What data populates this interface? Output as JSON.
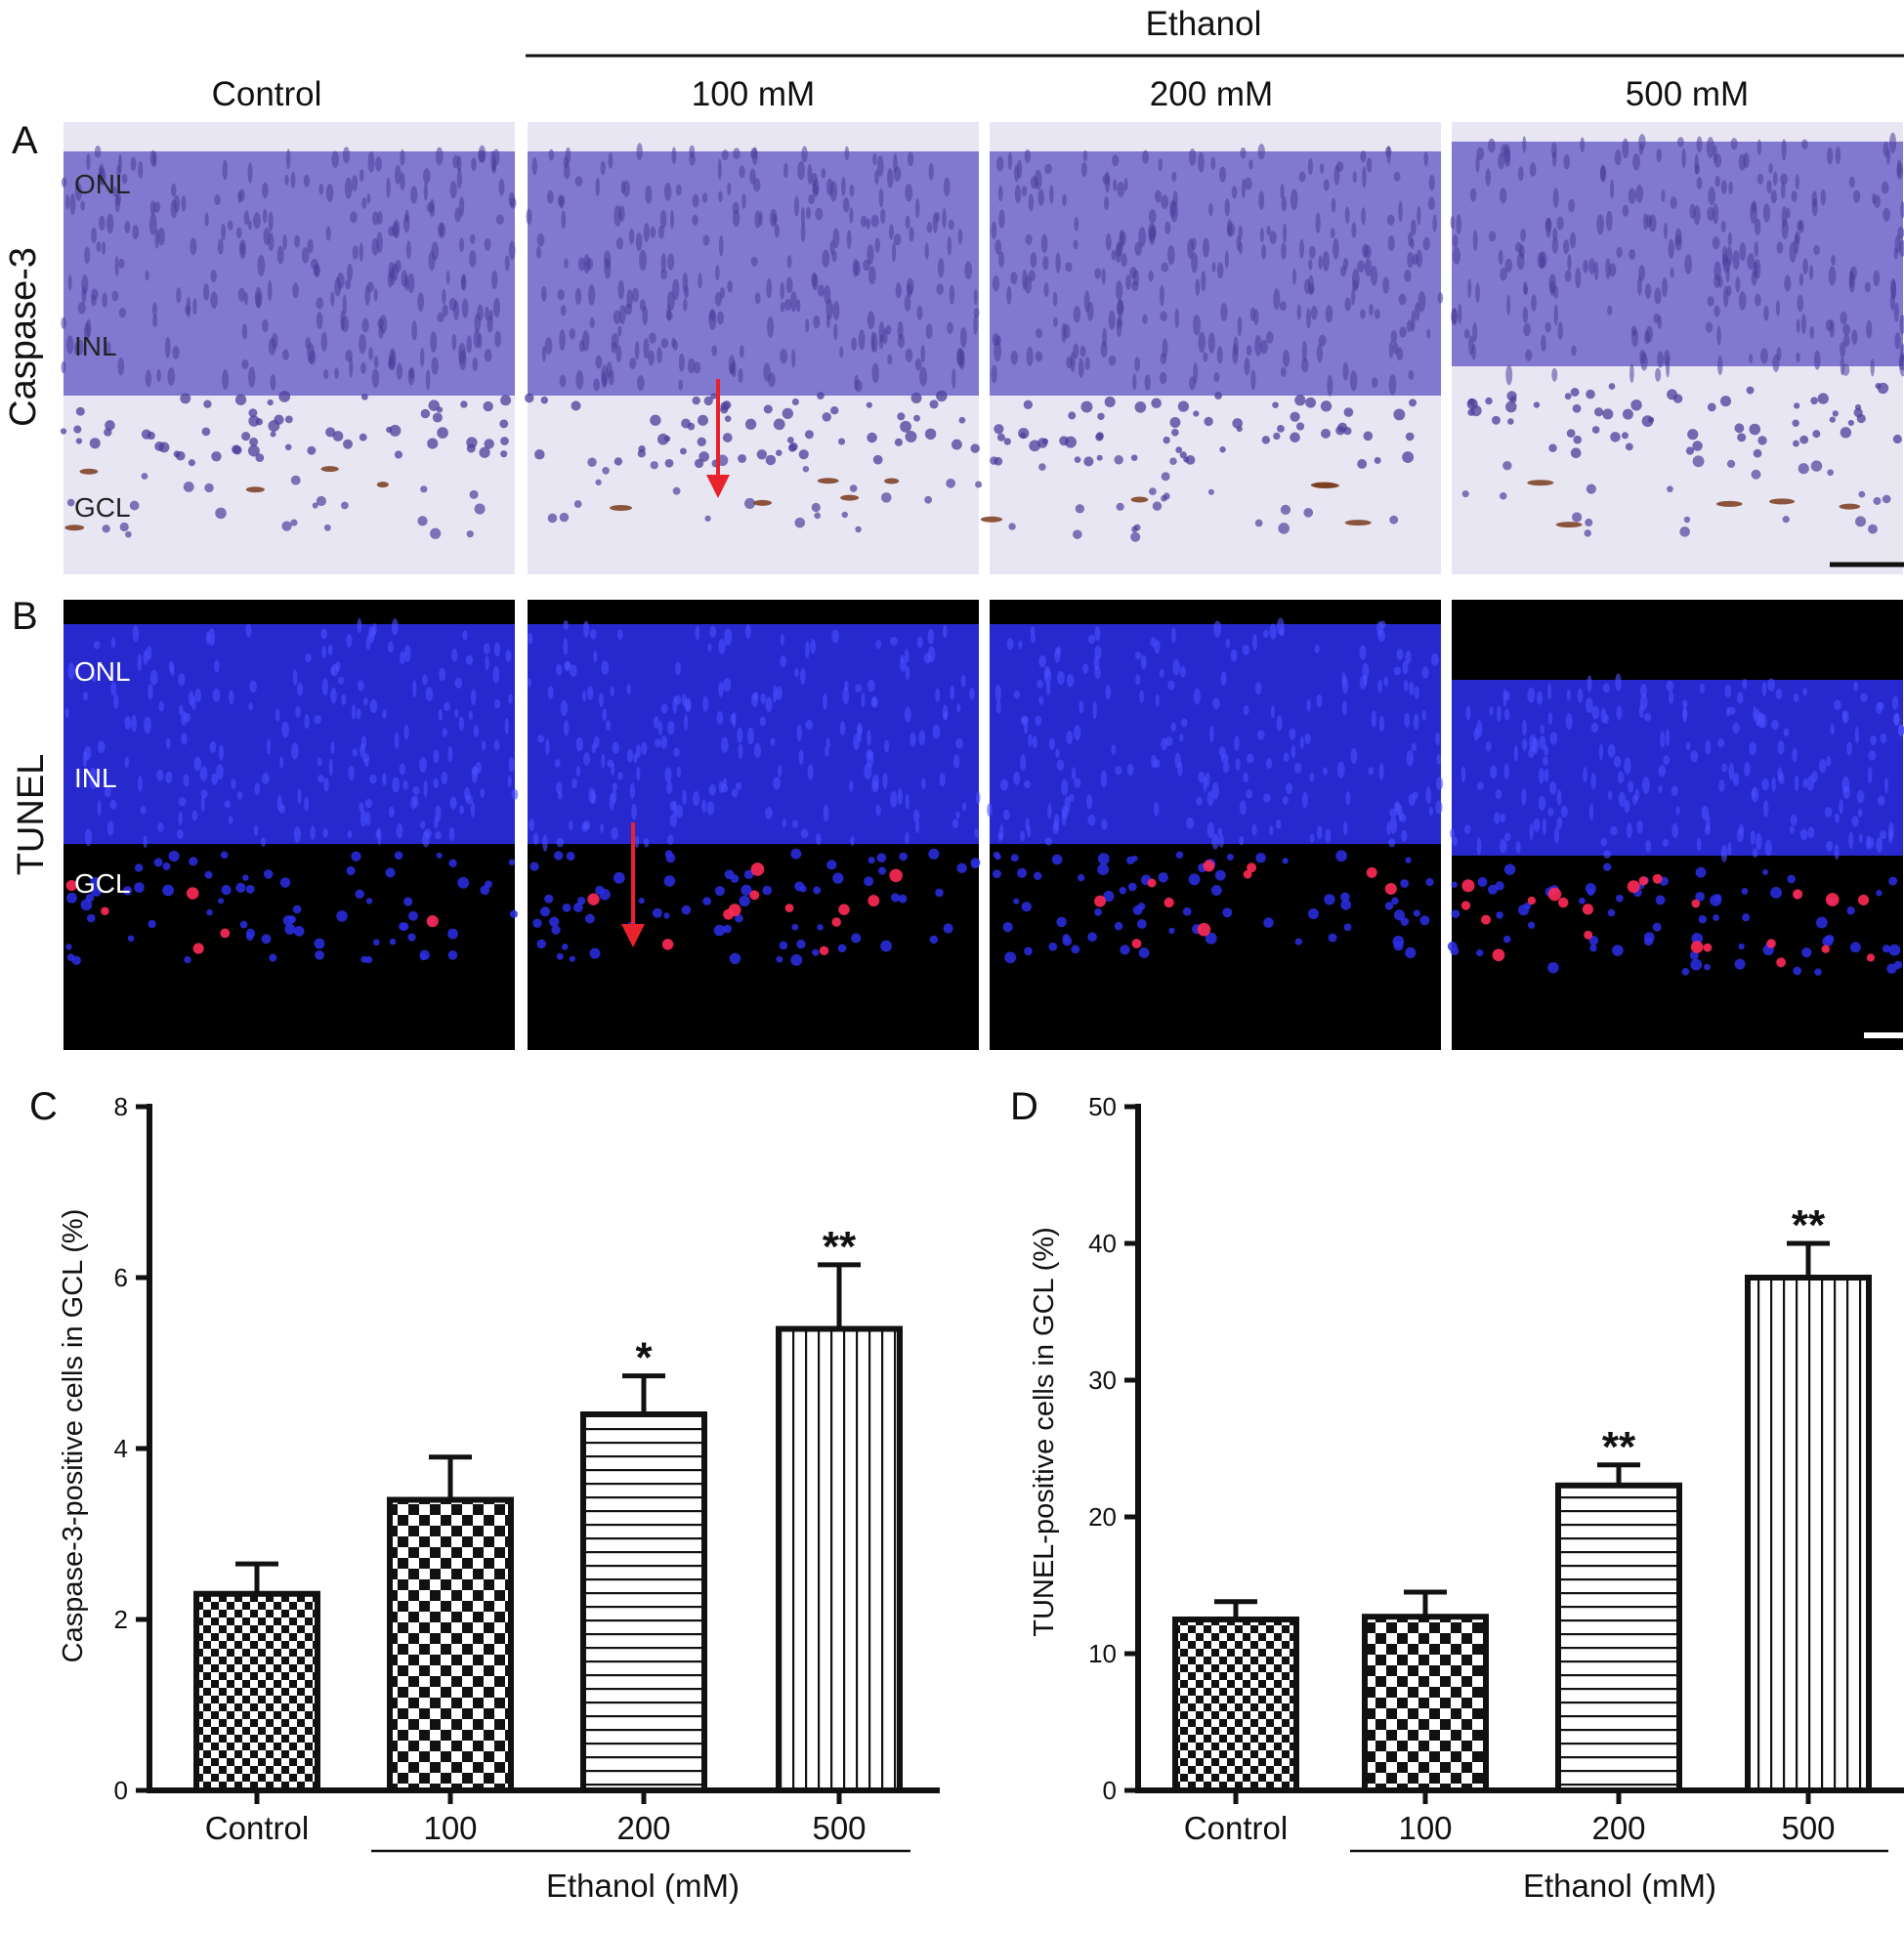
{
  "header": {
    "group_label": "Ethanol",
    "columns": [
      "Control",
      "100 mM",
      "200 mM",
      "500 mM"
    ]
  },
  "rows": [
    {
      "letter": "A",
      "label": "Caspase-3",
      "layers": [
        "ONL",
        "INL",
        "GCL"
      ]
    },
    {
      "letter": "B",
      "label": "TUNEL",
      "layers": [
        "ONL",
        "INL",
        "GCL"
      ]
    }
  ],
  "colors": {
    "he_background": "#e9e6f4",
    "he_stain": "#6f64c8",
    "he_cells": "#4b3e9a",
    "he_brown": "#7a3b1c",
    "fl_background": "#000000",
    "fl_blue": "#2b2ee6",
    "fl_red": "#ff2a55",
    "arrow": "#e8222b",
    "bar_stroke": "#111111"
  },
  "chart_data": [
    {
      "letter": "C",
      "type": "bar",
      "categories": [
        "Control",
        "100",
        "200",
        "500"
      ],
      "values": [
        2.3,
        3.4,
        4.4,
        5.4
      ],
      "errors": [
        0.35,
        0.5,
        0.45,
        0.75
      ],
      "significance": [
        "",
        "",
        "*",
        "**"
      ],
      "patterns": [
        "check-small",
        "check-large",
        "horizontal-lines",
        "vertical-lines"
      ],
      "ylabel": "Caspase-3-positive cells in GCL (%)",
      "xlabel": "Ethanol (mM)",
      "ylim": [
        0,
        8
      ],
      "yticks": [
        "0",
        "2",
        "4",
        "6",
        "8"
      ]
    },
    {
      "letter": "D",
      "type": "bar",
      "categories": [
        "Control",
        "100",
        "200",
        "500"
      ],
      "values": [
        12.5,
        12.7,
        22.3,
        37.5
      ],
      "errors": [
        1.3,
        1.8,
        1.5,
        2.5
      ],
      "significance": [
        "",
        "",
        "**",
        "**"
      ],
      "patterns": [
        "check-small",
        "check-large",
        "horizontal-lines",
        "vertical-lines"
      ],
      "ylabel": "TUNEL-positive cells in GCL (%)",
      "xlabel": "Ethanol (mM)",
      "ylim": [
        0,
        50
      ],
      "yticks": [
        "0",
        "10",
        "20",
        "30",
        "40",
        "50"
      ]
    }
  ]
}
